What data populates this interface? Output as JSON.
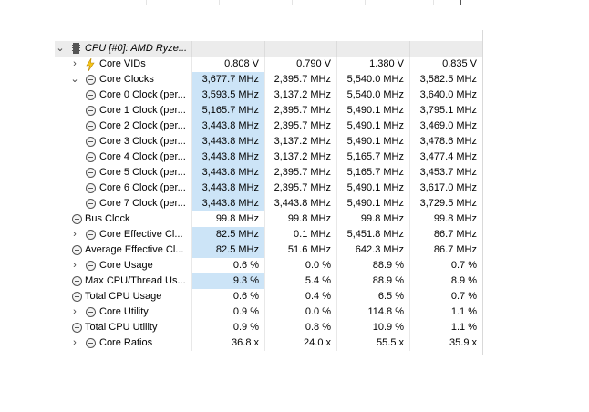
{
  "header": {
    "label": "CPU [#0]: AMD Ryze..."
  },
  "rows": [
    {
      "name": "Core VIDs",
      "expand": "›",
      "icon": "bolt",
      "vals": [
        "0.808 V",
        "0.790 V",
        "1.380 V",
        "0.835 V"
      ]
    },
    {
      "name": "Core Clocks",
      "expand": "⌄",
      "icon": "clock",
      "vals": [
        "3,677.7 MHz",
        "2,395.7 MHz",
        "5,540.0 MHz",
        "3,582.5 MHz"
      ],
      "hl": true
    },
    {
      "name": "Core 0 Clock (per...",
      "expand": "",
      "icon": "clock",
      "vals": [
        "3,593.5 MHz",
        "3,137.2 MHz",
        "5,540.0 MHz",
        "3,640.0 MHz"
      ],
      "hl": true
    },
    {
      "name": "Core 1 Clock (per...",
      "expand": "",
      "icon": "clock",
      "vals": [
        "5,165.7 MHz",
        "2,395.7 MHz",
        "5,490.1 MHz",
        "3,795.1 MHz"
      ],
      "hl": true
    },
    {
      "name": "Core 2 Clock (per...",
      "expand": "",
      "icon": "clock",
      "vals": [
        "3,443.8 MHz",
        "2,395.7 MHz",
        "5,490.1 MHz",
        "3,469.0 MHz"
      ],
      "hl": true
    },
    {
      "name": "Core 3 Clock (per...",
      "expand": "",
      "icon": "clock",
      "vals": [
        "3,443.8 MHz",
        "3,137.2 MHz",
        "5,490.1 MHz",
        "3,478.6 MHz"
      ],
      "hl": true
    },
    {
      "name": "Core 4 Clock (per...",
      "expand": "",
      "icon": "clock",
      "vals": [
        "3,443.8 MHz",
        "3,137.2 MHz",
        "5,165.7 MHz",
        "3,477.4 MHz"
      ],
      "hl": true
    },
    {
      "name": "Core 5 Clock (per...",
      "expand": "",
      "icon": "clock",
      "vals": [
        "3,443.8 MHz",
        "2,395.7 MHz",
        "5,165.7 MHz",
        "3,453.7 MHz"
      ],
      "hl": true
    },
    {
      "name": "Core 6 Clock (per...",
      "expand": "",
      "icon": "clock",
      "vals": [
        "3,443.8 MHz",
        "2,395.7 MHz",
        "5,490.1 MHz",
        "3,617.0 MHz"
      ],
      "hl": true
    },
    {
      "name": "Core 7 Clock (per...",
      "expand": "",
      "icon": "clock",
      "vals": [
        "3,443.8 MHz",
        "3,443.8 MHz",
        "5,490.1 MHz",
        "3,729.5 MHz"
      ],
      "hl": true
    },
    {
      "name": "Bus Clock",
      "expand": "",
      "icon": "clock",
      "vals": [
        "99.8 MHz",
        "99.8 MHz",
        "99.8 MHz",
        "99.8 MHz"
      ]
    },
    {
      "name": "Core Effective Cl...",
      "expand": "›",
      "icon": "clock",
      "vals": [
        "82.5 MHz",
        "0.1 MHz",
        "5,451.8 MHz",
        "86.7 MHz"
      ],
      "hl": true
    },
    {
      "name": "Average Effective Cl...",
      "expand": "",
      "icon": "clock",
      "vals": [
        "82.5 MHz",
        "51.6 MHz",
        "642.3 MHz",
        "86.7 MHz"
      ],
      "hl": true
    },
    {
      "name": "Core Usage",
      "expand": "›",
      "icon": "clock",
      "vals": [
        "0.6 %",
        "0.0 %",
        "88.9 %",
        "0.7 %"
      ]
    },
    {
      "name": "Max CPU/Thread Us...",
      "expand": "",
      "icon": "clock",
      "vals": [
        "9.3 %",
        "5.4 %",
        "88.9 %",
        "8.9 %"
      ],
      "hl": true
    },
    {
      "name": "Total CPU Usage",
      "expand": "",
      "icon": "clock",
      "vals": [
        "0.6 %",
        "0.4 %",
        "6.5 %",
        "0.7 %"
      ]
    },
    {
      "name": "Core Utility",
      "expand": "›",
      "icon": "clock",
      "vals": [
        "0.9 %",
        "0.0 %",
        "114.8 %",
        "1.1 %"
      ]
    },
    {
      "name": "Total CPU Utility",
      "expand": "",
      "icon": "clock",
      "vals": [
        "0.9 %",
        "0.8 %",
        "10.9 %",
        "1.1 %"
      ]
    },
    {
      "name": "Core Ratios",
      "expand": "›",
      "icon": "clock",
      "vals": [
        "36.8 x",
        "24.0 x",
        "55.5 x",
        "35.9 x"
      ]
    }
  ]
}
